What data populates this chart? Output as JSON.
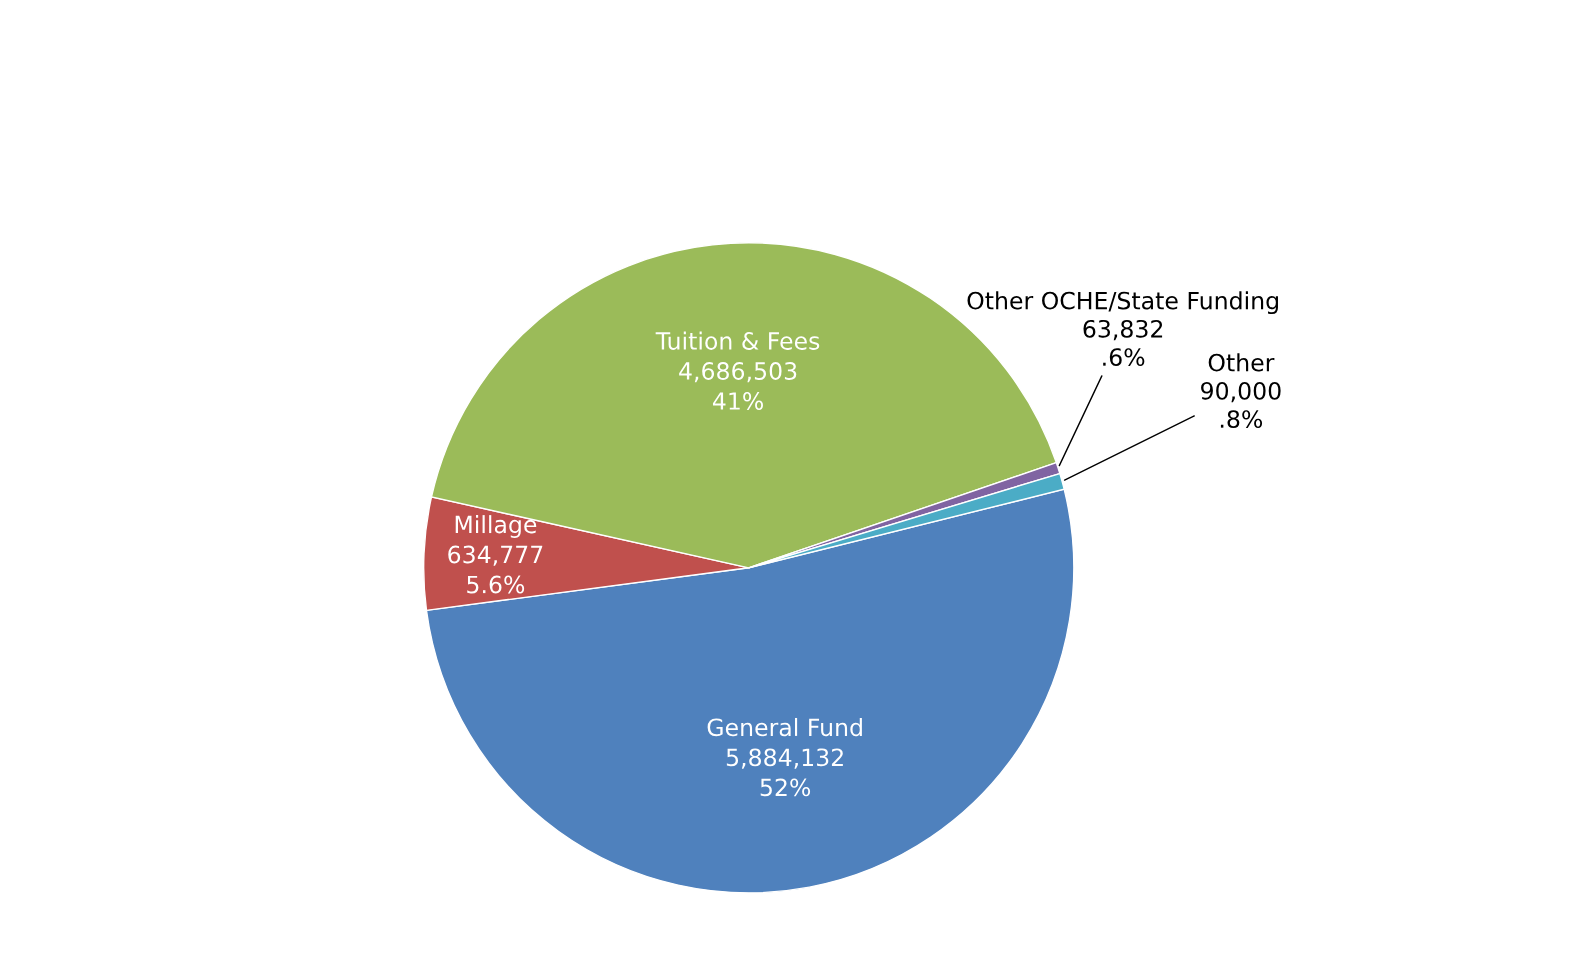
{
  "chart_data": {
    "type": "pie",
    "categories": [
      "General Fund",
      "Millage",
      "Tuition & Fees",
      "Other OCHE/State Funding",
      "Other"
    ],
    "values": [
      5884132,
      634777,
      4686503,
      63832,
      90000
    ],
    "value_labels": [
      "5,884,132\n52%",
      "634,777\n5.6%",
      "4,686,503\n41%",
      "63,832\n.6%",
      "90,000\n.8%"
    ],
    "colors": [
      "#4f81bd",
      "#c0504d",
      "#9bbb59",
      "#8064a2",
      "#4bacc6"
    ],
    "legend": false
  }
}
